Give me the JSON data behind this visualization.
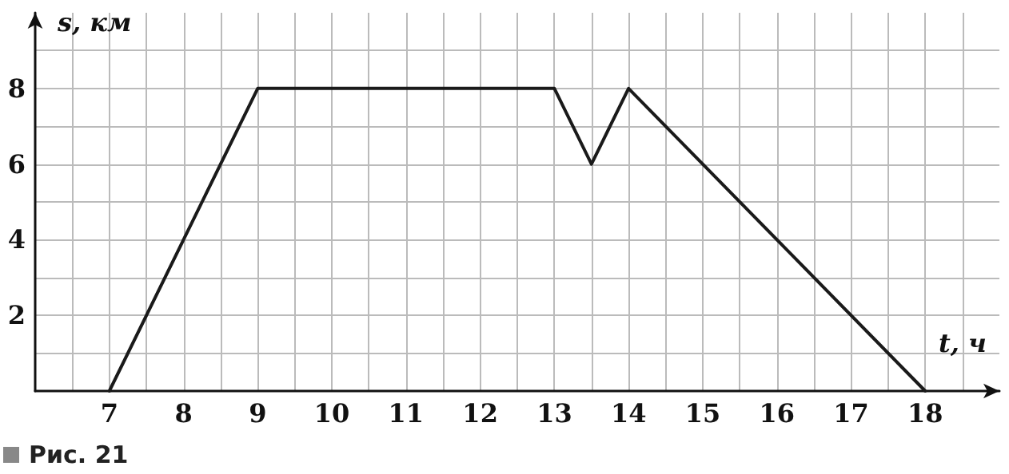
{
  "chart_data": {
    "type": "line",
    "xlabel": "t, ч",
    "ylabel": "s, км",
    "x": [
      7,
      9,
      13,
      13.5,
      14,
      18
    ],
    "series": [
      {
        "color": "#1a1a1a",
        "values": [
          0,
          8,
          8,
          6,
          8,
          0
        ]
      }
    ],
    "xlim": [
      6,
      19
    ],
    "ylim": [
      0,
      10
    ],
    "xticks": [
      7,
      8,
      9,
      10,
      11,
      12,
      13,
      14,
      15,
      16,
      17,
      18
    ],
    "yticks": [
      2,
      4,
      6,
      8
    ],
    "grid": true,
    "marker": "none",
    "line_style": "solid",
    "annotations": [
      "Рис. 21"
    ]
  }
}
